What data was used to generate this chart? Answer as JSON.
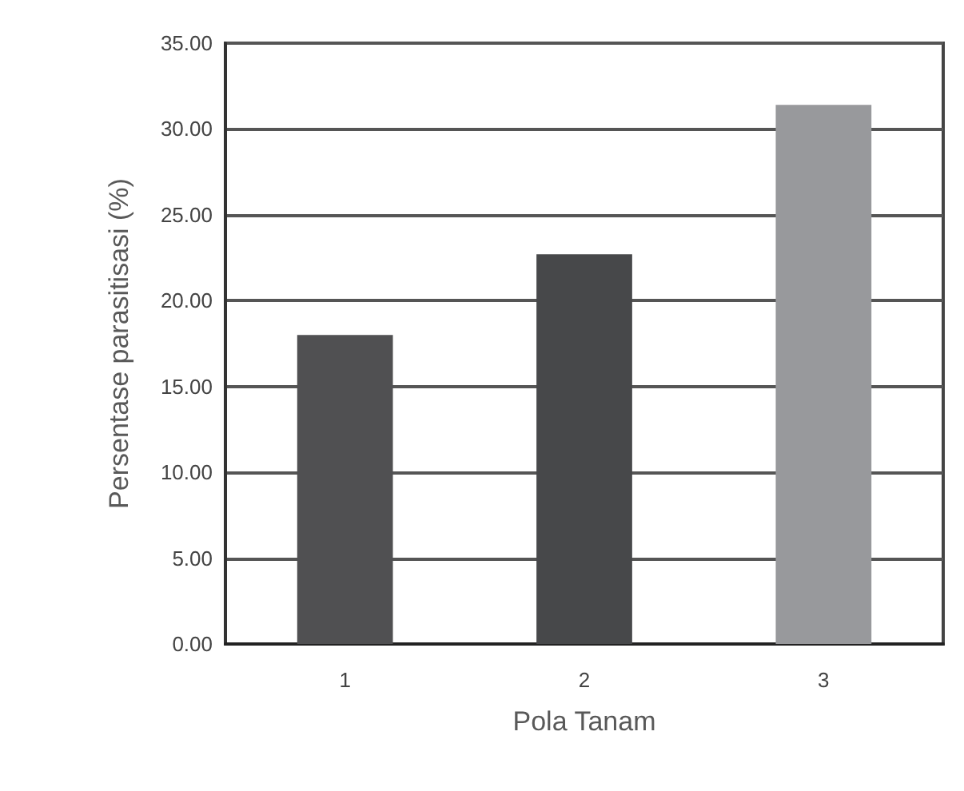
{
  "chart_data": {
    "type": "bar",
    "xlabel": "Pola Tanam",
    "ylabel": "Persentase parasitisasi (%)",
    "categories": [
      "1",
      "2",
      "3"
    ],
    "values": [
      18.0,
      22.7,
      31.4
    ],
    "colors": [
      "#505052",
      "#47484a",
      "#98999c"
    ],
    "ylim": [
      0,
      35
    ],
    "yticks": [
      {
        "value": 0,
        "label": "0.00"
      },
      {
        "value": 5,
        "label": "5.00"
      },
      {
        "value": 10,
        "label": "10.00"
      },
      {
        "value": 15,
        "label": "15.00"
      },
      {
        "value": 20,
        "label": "20.00"
      },
      {
        "value": 25,
        "label": "25.00"
      },
      {
        "value": 30,
        "label": "30.00"
      },
      {
        "value": 35,
        "label": "35.00"
      }
    ],
    "grid": "y"
  }
}
